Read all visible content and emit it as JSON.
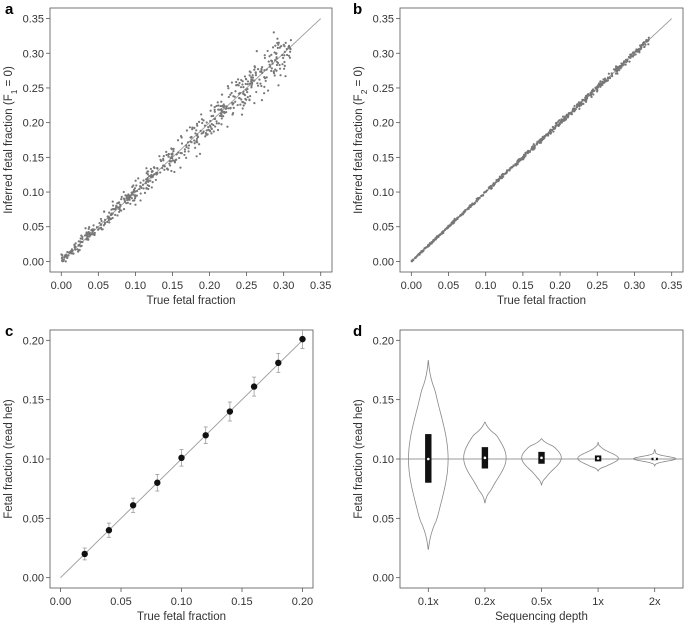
{
  "colors": {
    "points": "#777777",
    "line": "#9a9a9a",
    "axis": "#555555",
    "dark": "#111111",
    "violin": "#888888"
  },
  "chart_data": [
    {
      "panel_label": "a",
      "type": "scatter",
      "xlabel": "True fetal fraction",
      "ylabel": "Inferred fetal fraction (F",
      "ylabel_sub": "1",
      "ylabel_suffix": " = 0)",
      "xlim": [
        0,
        0.35
      ],
      "ylim": [
        0,
        0.35
      ],
      "xticks": [
        "0.00",
        "0.05",
        "0.10",
        "0.15",
        "0.20",
        "0.25",
        "0.30",
        "0.35"
      ],
      "yticks": [
        "0.00",
        "0.05",
        "0.10",
        "0.15",
        "0.20",
        "0.25",
        "0.30",
        "0.35"
      ],
      "reference_line": "y = x",
      "n_points": 600,
      "x_range": [
        0.0,
        0.31
      ],
      "scatter_spread": 0.012
    },
    {
      "panel_label": "b",
      "type": "scatter",
      "xlabel": "True fetal fraction",
      "ylabel": "Inferred fetal fraction (F",
      "ylabel_sub": "2",
      "ylabel_suffix": " = 0)",
      "xlim": [
        0,
        0.35
      ],
      "ylim": [
        0,
        0.35
      ],
      "xticks": [
        "0.00",
        "0.05",
        "0.10",
        "0.15",
        "0.20",
        "0.25",
        "0.30",
        "0.35"
      ],
      "yticks": [
        "0.00",
        "0.05",
        "0.10",
        "0.15",
        "0.20",
        "0.25",
        "0.30",
        "0.35"
      ],
      "reference_line": "y = x",
      "n_points": 600,
      "x_range": [
        0.0,
        0.32
      ],
      "scatter_spread": 0.002
    },
    {
      "panel_label": "c",
      "type": "scatter",
      "xlabel": "True fetal fraction",
      "ylabel": "Fetal fraction (read het)",
      "xlim": [
        0,
        0.2
      ],
      "ylim": [
        0,
        0.2
      ],
      "xticks": [
        "0.00",
        "0.05",
        "0.10",
        "0.15",
        "0.20"
      ],
      "yticks": [
        "0.00",
        "0.05",
        "0.10",
        "0.15",
        "0.20"
      ],
      "reference_line": "y = x",
      "x": [
        0.02,
        0.04,
        0.06,
        0.08,
        0.1,
        0.12,
        0.14,
        0.16,
        0.18,
        0.2
      ],
      "y": [
        0.02,
        0.04,
        0.061,
        0.08,
        0.101,
        0.12,
        0.14,
        0.161,
        0.181,
        0.201
      ],
      "error": [
        0.005,
        0.006,
        0.006,
        0.007,
        0.007,
        0.007,
        0.008,
        0.008,
        0.008,
        0.008
      ]
    },
    {
      "panel_label": "d",
      "type": "violin",
      "xlabel": "Sequencing depth",
      "ylabel": "Fetal fraction (read het)",
      "ylim": [
        0,
        0.2
      ],
      "yticks": [
        "0.00",
        "0.05",
        "0.10",
        "0.15",
        "0.20"
      ],
      "categories": [
        "0.1x",
        "0.2x",
        "0.5x",
        "1x",
        "2x"
      ],
      "reference_value": 0.1,
      "min": [
        0.024,
        0.063,
        0.078,
        0.09,
        0.094
      ],
      "q1": [
        0.08,
        0.092,
        0.096,
        0.098,
        0.099
      ],
      "median": [
        0.1,
        0.101,
        0.101,
        0.1005,
        0.1002
      ],
      "q3": [
        0.121,
        0.11,
        0.106,
        0.103,
        0.101
      ],
      "max": [
        0.183,
        0.131,
        0.117,
        0.114,
        0.108
      ],
      "max_density_width": [
        0.7,
        0.75,
        0.7,
        0.72,
        0.75
      ]
    }
  ]
}
